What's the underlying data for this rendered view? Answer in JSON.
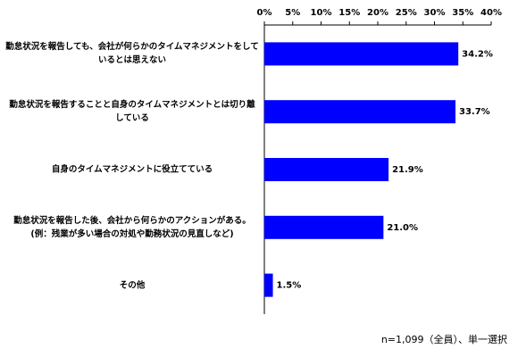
{
  "chart_data": {
    "type": "bar",
    "orientation": "horizontal",
    "categories": [
      "勤怠状況を報告しても、会社が何らかのタイムマネジメントをしているとは思えない",
      "勤怠状況を報告することと自身のタイムマネジメントとは切り離している",
      "自身のタイムマネジメントに役立てている",
      "勤怠状況を報告した後、会社から何らかのアクションがある。(例：残業が多い場合の対処や勤務状況の見直しなど)",
      "その他"
    ],
    "values": [
      34.2,
      33.7,
      21.9,
      21.0,
      1.5
    ],
    "value_labels": [
      "34.2%",
      "33.7%",
      "21.9%",
      "21.0%",
      "1.5%"
    ],
    "color": "#0000ff",
    "xlim": [
      0,
      40
    ],
    "xticks": [
      {
        "value": 0,
        "label": "0%"
      },
      {
        "value": 5,
        "label": "5%"
      },
      {
        "value": 10,
        "label": "10%"
      },
      {
        "value": 15,
        "label": "15%"
      },
      {
        "value": 20,
        "label": "20%"
      },
      {
        "value": 25,
        "label": "25%"
      },
      {
        "value": 30,
        "label": "30%"
      },
      {
        "value": 35,
        "label": "35%"
      },
      {
        "value": 40,
        "label": "40%"
      }
    ],
    "note": "n=1,099（全員）、単一選択"
  }
}
